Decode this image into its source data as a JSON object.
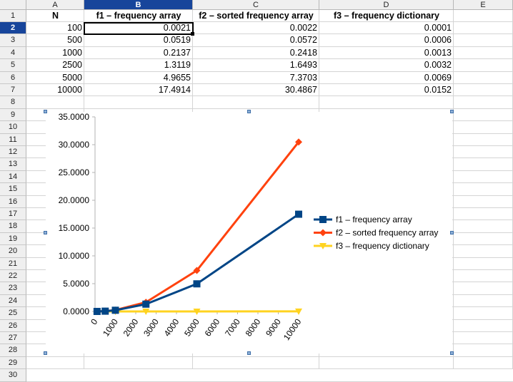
{
  "columns": [
    "A",
    "B",
    "C",
    "D",
    "E"
  ],
  "rows": [
    "1",
    "2",
    "3",
    "4",
    "5",
    "6",
    "7",
    "8",
    "9",
    "10",
    "11",
    "12",
    "13",
    "14",
    "15",
    "16",
    "17",
    "18",
    "19",
    "20",
    "21",
    "22",
    "23",
    "24",
    "25",
    "26",
    "27",
    "28",
    "29",
    "30"
  ],
  "selected_column": "B",
  "selected_row": "2",
  "table": {
    "headers": [
      "N",
      "f1 – frequency array",
      "f2 – sorted frequency array",
      "f3 – frequency dictionary"
    ],
    "rows": [
      [
        "100",
        "0.0021",
        "0.0022",
        "0.0001"
      ],
      [
        "500",
        "0.0519",
        "0.0572",
        "0.0006"
      ],
      [
        "1000",
        "0.2137",
        "0.2418",
        "0.0013"
      ],
      [
        "2500",
        "1.3119",
        "1.6493",
        "0.0032"
      ],
      [
        "5000",
        "4.9655",
        "7.3703",
        "0.0069"
      ],
      [
        "10000",
        "17.4914",
        "30.4867",
        "0.0152"
      ]
    ]
  },
  "chart_data": {
    "type": "line",
    "title": "",
    "xlabel": "",
    "ylabel": "",
    "x": [
      100,
      500,
      1000,
      2500,
      5000,
      10000
    ],
    "x_ticks": [
      "0",
      "1000",
      "2000",
      "3000",
      "4000",
      "5000",
      "6000",
      "7000",
      "8000",
      "9000",
      "10000"
    ],
    "xlim": [
      0,
      10000
    ],
    "y_ticks": [
      "0.0000",
      "5.0000",
      "10.0000",
      "15.0000",
      "20.0000",
      "25.0000",
      "30.0000",
      "35.0000"
    ],
    "ylim": [
      0,
      35
    ],
    "grid": false,
    "legend_position": "right",
    "series": [
      {
        "name": "f1 – frequency array",
        "color": "#004586",
        "marker": "square",
        "values": [
          0.0021,
          0.0519,
          0.2137,
          1.3119,
          4.9655,
          17.4914
        ]
      },
      {
        "name": "f2 – sorted frequency array",
        "color": "#ff420e",
        "marker": "diamond",
        "values": [
          0.0022,
          0.0572,
          0.2418,
          1.6493,
          7.3703,
          30.4867
        ]
      },
      {
        "name": "f3 – frequency dictionary",
        "color": "#ffd320",
        "marker": "triangle-down",
        "values": [
          0.0001,
          0.0006,
          0.0013,
          0.0032,
          0.0069,
          0.0152
        ]
      }
    ]
  }
}
